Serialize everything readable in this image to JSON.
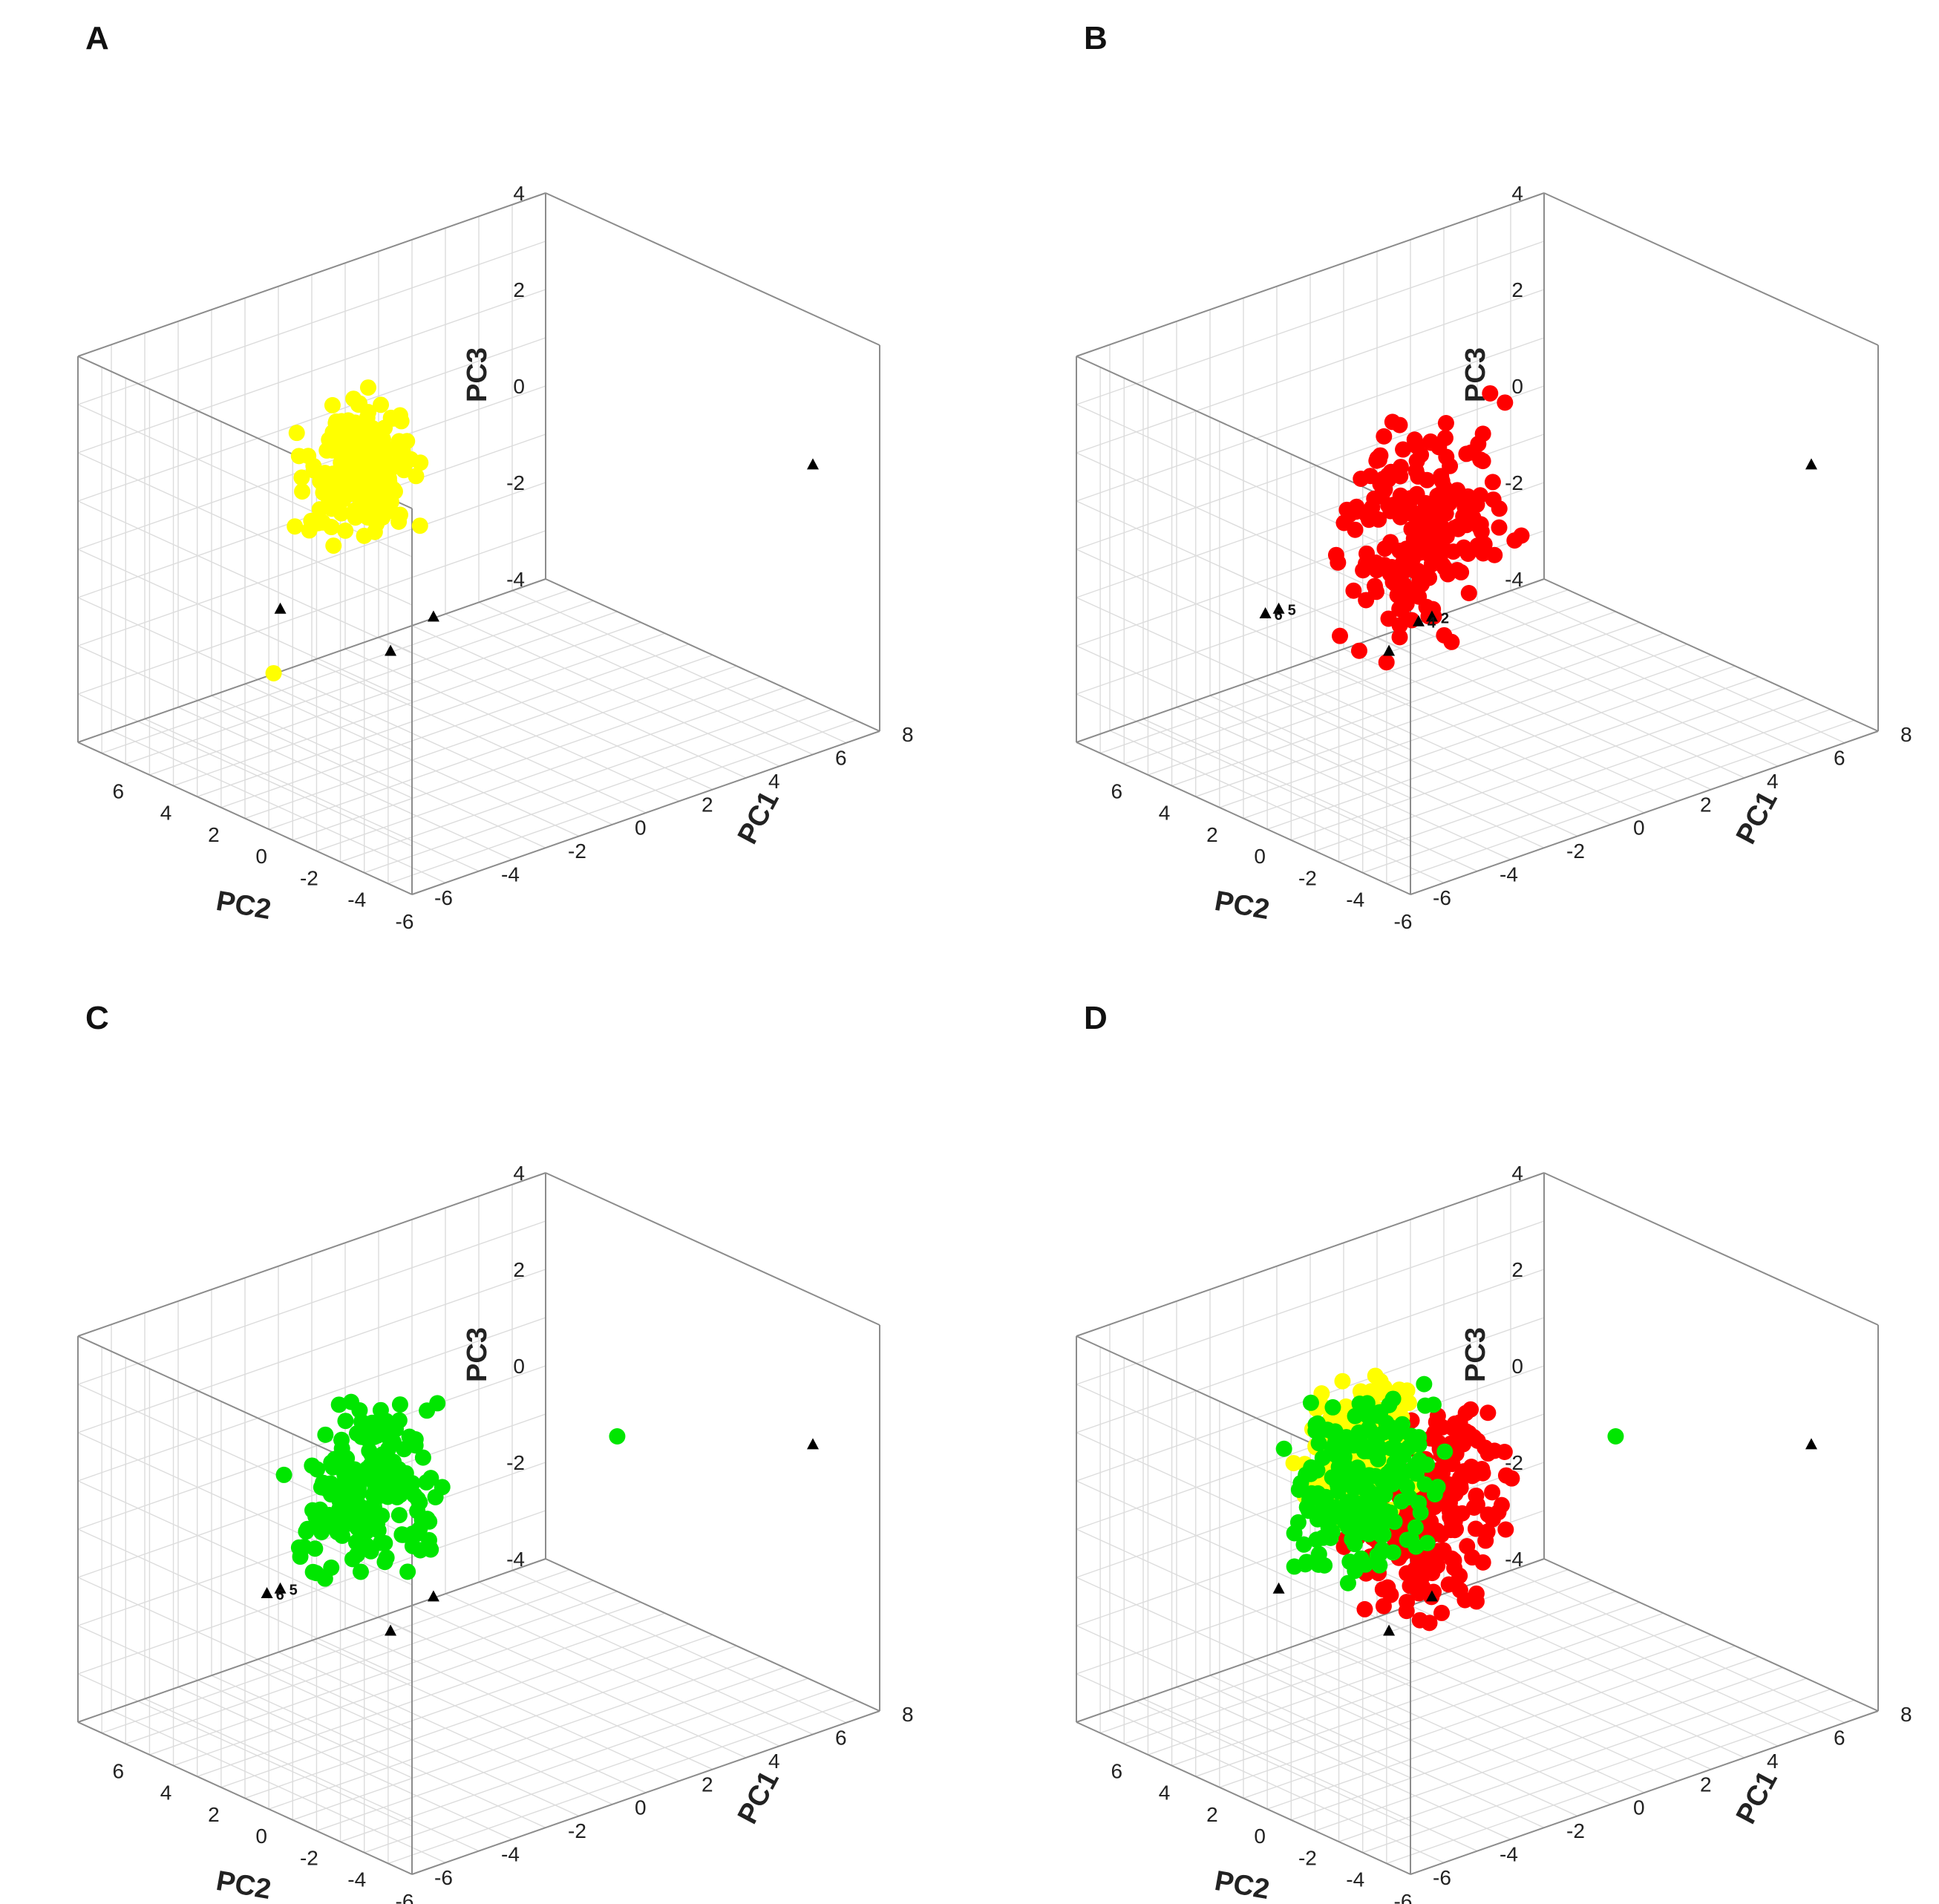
{
  "chart_data": [
    {
      "panel": "A",
      "type": "scatter",
      "xlabel": "PC1",
      "ylabel": "PC2",
      "zlabel": "PC3",
      "xlim": [
        -6,
        8
      ],
      "ylim": [
        -6,
        8
      ],
      "zlim": [
        -4,
        4
      ],
      "x_ticks": [
        -6,
        -4,
        -2,
        0,
        2,
        4,
        6,
        8
      ],
      "y_ticks": [
        "6",
        "4",
        "2",
        "0",
        "-2",
        "-4",
        "-6"
      ],
      "z_ticks": [
        "4",
        "2",
        "0",
        "-2",
        "-4"
      ],
      "series": [
        {
          "color": "#ffff00",
          "marker": "circle",
          "cluster": {
            "pc1": [
              -4,
              0
            ],
            "pc2": [
              0.5,
              3
            ],
            "pc3": [
              0.5,
              3.6
            ]
          },
          "extra_points": [
            {
              "pc1": -5.5,
              "pc2": 0.5,
              "pc3": -1
            }
          ]
        }
      ],
      "reference_points": [
        {
          "pc1": -2.5,
          "pc2": -2,
          "pc3": 0,
          "label": ""
        },
        {
          "pc1": -4.8,
          "pc2": 1.2,
          "pc3": 0,
          "label": ""
        },
        {
          "pc1": -4.5,
          "pc2": -3,
          "pc3": 0,
          "label": ""
        },
        {
          "pc1": 6,
          "pc2": -6,
          "pc3": 2,
          "label": ""
        }
      ]
    },
    {
      "panel": "B",
      "type": "scatter",
      "xlabel": "PC1",
      "ylabel": "PC2",
      "zlabel": "PC3",
      "xlim": [
        -6,
        8
      ],
      "ylim": [
        -6,
        8
      ],
      "zlim": [
        -4,
        4
      ],
      "x_ticks": [
        -6,
        -4,
        -2,
        0,
        2,
        4,
        6,
        8
      ],
      "y_ticks": [
        "6",
        "4",
        "2",
        "0",
        "-2",
        "-4",
        "-6"
      ],
      "z_ticks": [
        "4",
        "2",
        "0",
        "-2",
        "-4"
      ],
      "series": [
        {
          "color": "#ff0000",
          "marker": "circle",
          "cluster": {
            "pc1": [
              -5,
              1
            ],
            "pc2": [
              -3,
              1
            ],
            "pc3": [
              -1,
              3.8
            ]
          },
          "extra_points": []
        }
      ],
      "reference_points": [
        {
          "pc1": -4.8,
          "pc2": 1.2,
          "pc3": 0,
          "label": "5"
        },
        {
          "pc1": -5.2,
          "pc2": 1.2,
          "pc3": 0,
          "label": "6"
        },
        {
          "pc1": -2.5,
          "pc2": -2,
          "pc3": 0,
          "label": "2"
        },
        {
          "pc1": -2.9,
          "pc2": -2,
          "pc3": 0,
          "label": "4"
        },
        {
          "pc1": -4.5,
          "pc2": -3,
          "pc3": 0,
          "label": ""
        },
        {
          "pc1": 6,
          "pc2": -6,
          "pc3": 2,
          "label": ""
        }
      ]
    },
    {
      "panel": "C",
      "type": "scatter",
      "xlabel": "PC1",
      "ylabel": "PC2",
      "zlabel": "PC3",
      "xlim": [
        -6,
        8
      ],
      "ylim": [
        -6,
        8
      ],
      "zlim": [
        -4,
        4
      ],
      "x_ticks": [
        -6,
        -4,
        -2,
        0,
        2,
        4,
        6,
        8
      ],
      "y_ticks": [
        "6",
        "4",
        "2",
        "0",
        "-2",
        "-4",
        "-6"
      ],
      "z_ticks": [
        "4",
        "2",
        "0",
        "-2",
        "-4"
      ],
      "series": [
        {
          "color": "#00e600",
          "marker": "circle",
          "cluster": {
            "pc1": [
              -5,
              0
            ],
            "pc2": [
              -1,
              2.5
            ],
            "pc3": [
              -0.3,
              3.6
            ]
          },
          "extra_points": [
            {
              "pc1": 3,
              "pc2": -2,
              "pc3": 2
            }
          ]
        }
      ],
      "reference_points": [
        {
          "pc1": -4.8,
          "pc2": 1.2,
          "pc3": 0,
          "label": "5"
        },
        {
          "pc1": -5.2,
          "pc2": 1.2,
          "pc3": 0,
          "label": "6"
        },
        {
          "pc1": -2.5,
          "pc2": -2,
          "pc3": 0,
          "label": ""
        },
        {
          "pc1": -4.5,
          "pc2": -3,
          "pc3": 0,
          "label": ""
        },
        {
          "pc1": 6,
          "pc2": -6,
          "pc3": 2,
          "label": ""
        }
      ]
    },
    {
      "panel": "D",
      "type": "scatter",
      "xlabel": "PC1",
      "ylabel": "PC2",
      "zlabel": "PC3",
      "xlim": [
        -6,
        8
      ],
      "ylim": [
        -6,
        8
      ],
      "zlim": [
        -4,
        4
      ],
      "x_ticks": [
        -6,
        -4,
        -2,
        0,
        2,
        4,
        6,
        8
      ],
      "y_ticks": [
        "6",
        "4",
        "2",
        "0",
        "-2",
        "-4",
        "-6"
      ],
      "z_ticks": [
        "4",
        "2",
        "0",
        "-2",
        "-4"
      ],
      "series": [
        {
          "color": "#ff0000",
          "marker": "circle",
          "cluster": {
            "pc1": [
              -5,
              1
            ],
            "pc2": [
              -3,
              1
            ],
            "pc3": [
              -1,
              3.8
            ]
          },
          "extra_points": []
        },
        {
          "color": "#ffff00",
          "marker": "circle",
          "cluster": {
            "pc1": [
              -4,
              0
            ],
            "pc2": [
              0.5,
              3
            ],
            "pc3": [
              0.5,
              3.6
            ]
          },
          "extra_points": []
        },
        {
          "color": "#00e600",
          "marker": "circle",
          "cluster": {
            "pc1": [
              -5,
              0
            ],
            "pc2": [
              -1,
              2.5
            ],
            "pc3": [
              -0.3,
              3.6
            ]
          },
          "extra_points": [
            {
              "pc1": 3,
              "pc2": -2,
              "pc3": 2
            }
          ]
        }
      ],
      "reference_points": [
        {
          "pc1": -4.8,
          "pc2": 1.2,
          "pc3": 0,
          "label": ""
        },
        {
          "pc1": -2.5,
          "pc2": -2,
          "pc3": 0,
          "label": ""
        },
        {
          "pc1": -4.5,
          "pc2": -3,
          "pc3": 0,
          "label": ""
        },
        {
          "pc1": 6,
          "pc2": -6,
          "pc3": 2,
          "label": ""
        }
      ]
    }
  ]
}
